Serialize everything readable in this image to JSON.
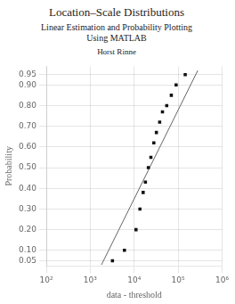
{
  "chart_data": {
    "type": "scatter",
    "title": "Location–Scale Distributions",
    "subtitle": "Linear Estimation and Probability Plotting\nUsing MATLAB",
    "author": "Horst Rinne",
    "xlabel": "data - threshold",
    "ylabel": "Probability",
    "log": "x",
    "grid": true,
    "xlim": [
      100,
      1000000
    ],
    "xticks": [
      {
        "value": 100,
        "label": "10²"
      },
      {
        "value": 1000,
        "label": "10³"
      },
      {
        "value": 10000,
        "label": "10⁴"
      },
      {
        "value": 100000,
        "label": "10⁵"
      },
      {
        "value": 1000000,
        "label": "10⁶"
      }
    ],
    "ylim": [
      0.025,
      0.99
    ],
    "yticks": [
      0.05,
      {
        "value": 0.1,
        "label": "0.10"
      },
      {
        "value": 0.2,
        "label": "0.20"
      },
      {
        "value": 0.3,
        "label": "0.30"
      },
      {
        "value": 0.4,
        "label": "0.40"
      },
      {
        "value": 0.5,
        "label": "0.50"
      },
      {
        "value": 0.6,
        "label": "0.60"
      },
      {
        "value": 0.7,
        "label": "0.70"
      },
      {
        "value": 0.8,
        "label": "0.80"
      },
      {
        "value": 0.9,
        "label": "0.90"
      },
      0.95
    ],
    "series": [
      {
        "type": "scatter",
        "color": "#111111",
        "marker": "square",
        "x": [
          3200,
          6000,
          11000,
          13500,
          16000,
          18000,
          21000,
          24000,
          28000,
          32000,
          38000,
          44000,
          55000,
          70000,
          90000,
          145000
        ],
        "values": [
          0.05,
          0.1,
          0.2,
          0.3,
          0.38,
          0.43,
          0.5,
          0.55,
          0.62,
          0.67,
          0.72,
          0.77,
          0.8,
          0.85,
          0.9,
          0.95
        ]
      },
      {
        "type": "line",
        "color": "#666666",
        "x": [
          1800,
          280000
        ],
        "values": [
          0.03,
          0.97
        ]
      }
    ]
  }
}
